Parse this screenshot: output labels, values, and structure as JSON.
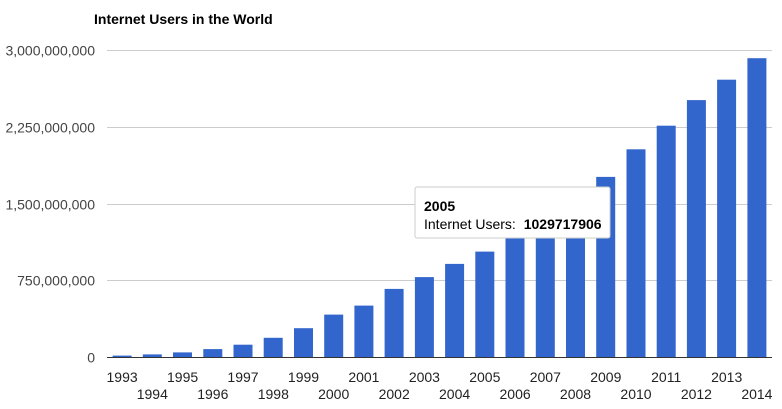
{
  "chart_data": {
    "type": "bar",
    "title": "Internet Users in the World",
    "xlabel": "",
    "ylabel": "",
    "ylim": [
      0,
      3000000000
    ],
    "yticks": [
      0,
      750000000,
      1500000000,
      2250000000,
      3000000000
    ],
    "ytick_labels": [
      "0",
      "750,000,000",
      "1,500,000,000",
      "2,250,000,000",
      "3,000,000,000"
    ],
    "grid": true,
    "legend": "none",
    "bar_color": "#3366cc",
    "categories": [
      "1993",
      "1994",
      "1995",
      "1996",
      "1997",
      "1998",
      "1999",
      "2000",
      "2001",
      "2002",
      "2003",
      "2004",
      "2005",
      "2006",
      "2007",
      "2008",
      "2009",
      "2010",
      "2011",
      "2012",
      "2013",
      "2014"
    ],
    "values": [
      14000000,
      25000000,
      45000000,
      77000000,
      120000000,
      188000000,
      281000000,
      414000000,
      502000000,
      665000000,
      781000000,
      910000000,
      1029717906,
      1160000000,
      1370000000,
      1570000000,
      1760000000,
      2030000000,
      2260000000,
      2510000000,
      2710000000,
      2920000000
    ],
    "tooltip": {
      "category": "2005",
      "series_label": "Internet Users:",
      "value": "1029717906"
    }
  }
}
